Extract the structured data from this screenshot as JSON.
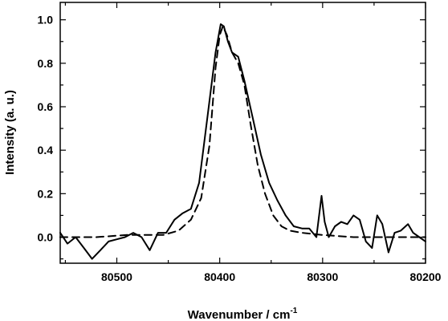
{
  "chart_data": {
    "type": "line",
    "title": "",
    "xlabel": "Wavenumber / cm",
    "xlabel_superscript": "-1",
    "ylabel": "Intensity (a. u.)",
    "xlim": [
      80555,
      80200
    ],
    "x_reversed": true,
    "ylim": [
      -0.12,
      1.08
    ],
    "x_ticks": [
      80500,
      80400,
      80300,
      80200
    ],
    "x_tick_labels": [
      "80500",
      "80400",
      "80300",
      "80200"
    ],
    "y_ticks": [
      0.0,
      0.2,
      0.4,
      0.6,
      0.8,
      1.0
    ],
    "y_tick_labels": [
      "0.0",
      "0.2",
      "0.4",
      "0.6",
      "0.8",
      "1.0"
    ],
    "grid": false,
    "legend": "none",
    "series": [
      {
        "style": "solid",
        "color": "#000000",
        "x": [
          80555,
          80548,
          80540,
          80532,
          80524,
          80516,
          80508,
          80500,
          80492,
          80484,
          80476,
          80468,
          80460,
          80452,
          80444,
          80436,
          80428,
          80420,
          80412,
          80404,
          80399,
          80396,
          80392,
          80388,
          80382,
          80376,
          80368,
          80360,
          80352,
          80344,
          80336,
          80328,
          80320,
          80313,
          80306,
          80301,
          80298,
          80294,
          80288,
          80282,
          80276,
          80270,
          80264,
          80258,
          80252,
          80247,
          80242,
          80236,
          80230,
          80224,
          80217,
          80212,
          80206,
          80200
        ],
        "y": [
          0.02,
          -0.03,
          0.0,
          -0.05,
          -0.1,
          -0.06,
          -0.02,
          -0.01,
          0.0,
          0.02,
          0.0,
          -0.06,
          0.02,
          0.02,
          0.08,
          0.11,
          0.13,
          0.25,
          0.55,
          0.85,
          0.98,
          0.97,
          0.9,
          0.85,
          0.83,
          0.72,
          0.55,
          0.38,
          0.25,
          0.17,
          0.1,
          0.05,
          0.04,
          0.04,
          0.0,
          0.19,
          0.07,
          0.0,
          0.05,
          0.07,
          0.06,
          0.1,
          0.08,
          -0.02,
          -0.05,
          0.1,
          0.06,
          -0.07,
          0.02,
          0.03,
          0.06,
          0.02,
          0.0,
          -0.02
        ]
      },
      {
        "style": "dashed",
        "color": "#000000",
        "x": [
          80555,
          80520,
          80490,
          80470,
          80455,
          80440,
          80428,
          80418,
          80410,
          80404,
          80400,
          80397,
          80393,
          80388,
          80382,
          80376,
          80370,
          80363,
          80356,
          80348,
          80340,
          80332,
          80320,
          80300,
          80270,
          80240,
          80200
        ],
        "y": [
          0.0,
          0.0,
          0.01,
          0.01,
          0.01,
          0.03,
          0.08,
          0.18,
          0.42,
          0.78,
          0.93,
          0.97,
          0.93,
          0.85,
          0.8,
          0.7,
          0.52,
          0.33,
          0.2,
          0.1,
          0.05,
          0.03,
          0.02,
          0.01,
          0.0,
          0.0,
          0.0
        ]
      }
    ]
  }
}
